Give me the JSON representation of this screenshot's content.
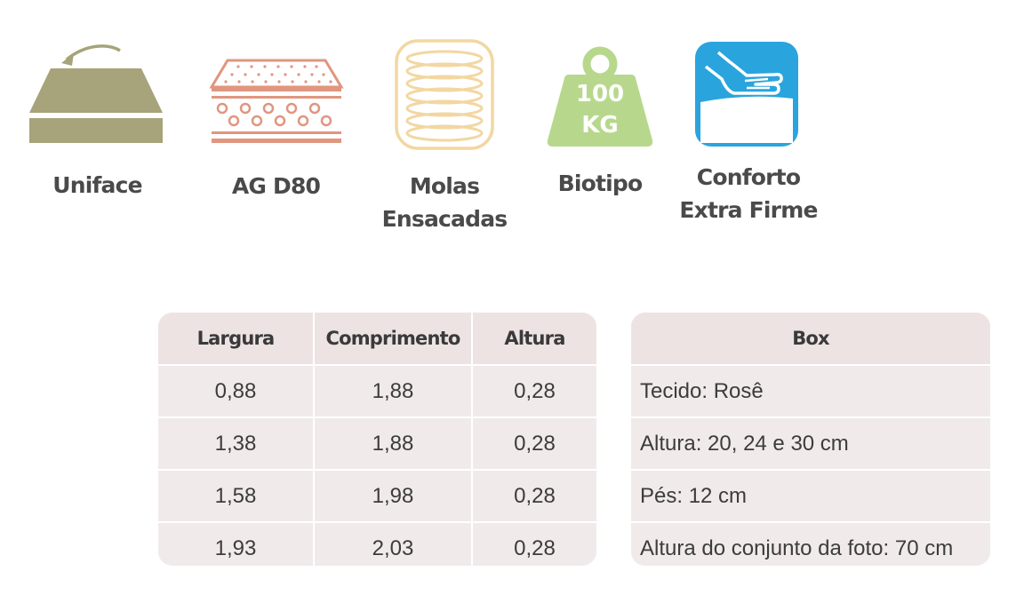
{
  "features": [
    {
      "icon": "mattress-flip-icon",
      "label_lines": [
        "Uniface"
      ]
    },
    {
      "icon": "foam-layers-icon",
      "label_lines": [
        "AG D80"
      ]
    },
    {
      "icon": "spring-coil-icon",
      "label_lines": [
        "Molas",
        "Ensacadas"
      ]
    },
    {
      "icon": "weight-icon",
      "icon_text": [
        "100",
        "KG"
      ],
      "label_lines": [
        "Biotipo"
      ]
    },
    {
      "icon": "hand-press-icon",
      "label_lines": [
        "Conforto",
        "Extra Firme"
      ]
    }
  ],
  "dimensions_table": {
    "headers": [
      "Largura",
      "Comprimento",
      "Altura"
    ],
    "rows": [
      [
        "0,88",
        "1,88",
        "0,28"
      ],
      [
        "1,38",
        "1,88",
        "0,28"
      ],
      [
        "1,58",
        "1,98",
        "0,28"
      ],
      [
        "1,93",
        "2,03",
        "0,28"
      ]
    ]
  },
  "box_table": {
    "header": "Box",
    "rows": [
      "Tecido: Rosê",
      "Altura: 20, 24 e 30 cm",
      "Pés: 12 cm",
      "Altura do conjunto da foto: 70 cm"
    ]
  },
  "colors": {
    "mattress_green": "#a7a37a",
    "foam_salmon": "#e0967f",
    "spring_yellow": "#f2d7a2",
    "weight_green": "#b7d88c",
    "comfort_blue": "#2aa4dd",
    "table_bg": "#efe6e6"
  }
}
